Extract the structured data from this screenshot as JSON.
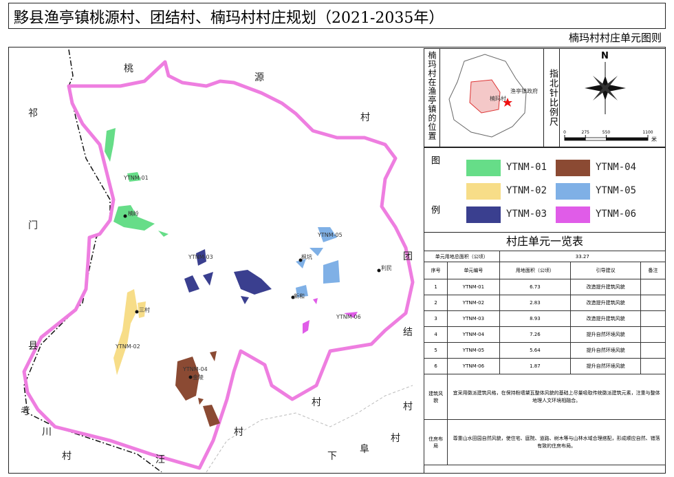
{
  "header": {
    "title": "黟县渔亭镇桃源村、团结村、楠玛村村庄规划（2021-2035年）",
    "subtitle": "楠玛村村庄单元图则"
  },
  "map": {
    "places": [
      "桃",
      "源",
      "村",
      "祁",
      "门",
      "县",
      "团",
      "结",
      "村",
      "考",
      "川",
      "村",
      "汪",
      "村",
      "村",
      "村",
      "下",
      "阜"
    ],
    "labels": [
      "YTNM-01",
      "楠岭",
      "YTNM-03",
      "YTNM-05",
      "枫坑",
      "利民",
      "新和",
      "YTNM-06",
      "三村",
      "YTNM-02",
      "YTNM-04",
      "金陵"
    ]
  },
  "location": {
    "caption": "楠玛村在渔亭镇的位置",
    "village": "楠玛村",
    "government": "渔亭镇政府"
  },
  "compass": {
    "caption": "指北针比例尺",
    "north": "N"
  },
  "scale": {
    "ticks": [
      0,
      275,
      550,
      1100
    ],
    "unit": "米"
  },
  "legend": {
    "caption": [
      "图",
      "例"
    ],
    "items": [
      {
        "label": "YTNM-01",
        "color": "#66dd88"
      },
      {
        "label": "YTNM-02",
        "color": "#f7dd88"
      },
      {
        "label": "YTNM-03",
        "color": "#3a3f8f"
      },
      {
        "label": "YTNM-04",
        "color": "#8b4a33"
      },
      {
        "label": "YTNM-05",
        "color": "#7fb0e6"
      },
      {
        "label": "YTNM-06",
        "color": "#e05ce8"
      }
    ]
  },
  "table": {
    "title": "村庄单元一览表",
    "total": {
      "label": "单元用地总面积（公顷）",
      "value": 33.27
    },
    "columns": [
      "序号",
      "单元编号",
      "用地面积（公顷）",
      "引导建议",
      "备注"
    ],
    "rows": [
      [
        1,
        "YTNM-01",
        6.73,
        "改造提升建筑风貌"
      ],
      [
        2,
        "YTNM-02",
        2.83,
        "改造提升建筑风貌"
      ],
      [
        3,
        "YTNM-03",
        8.93,
        "改造提升建筑风貌"
      ],
      [
        4,
        "YTNM-04",
        7.26,
        "提升自然环境风貌"
      ],
      [
        5,
        "YTNM-05",
        5.64,
        "提升自然环境风貌"
      ],
      [
        6,
        "YTNM-06",
        1.87,
        "提升自然环境风貌"
      ]
    ],
    "notes": [
      {
        "label": "建筑风貌",
        "text": "宜采用徽派建筑风格，在保持粉墙黛瓦整体风貌的基础上尽量吸取传统徽派建筑元素，注重与整体地理人文环境相融合。"
      },
      {
        "label": "住房布局",
        "text": "尊重山水田园自然风貌，使住宅、庭院、道路、树木等与山林水域合理搭配，形成顺应自然、错落有致的住房布局。"
      }
    ]
  }
}
